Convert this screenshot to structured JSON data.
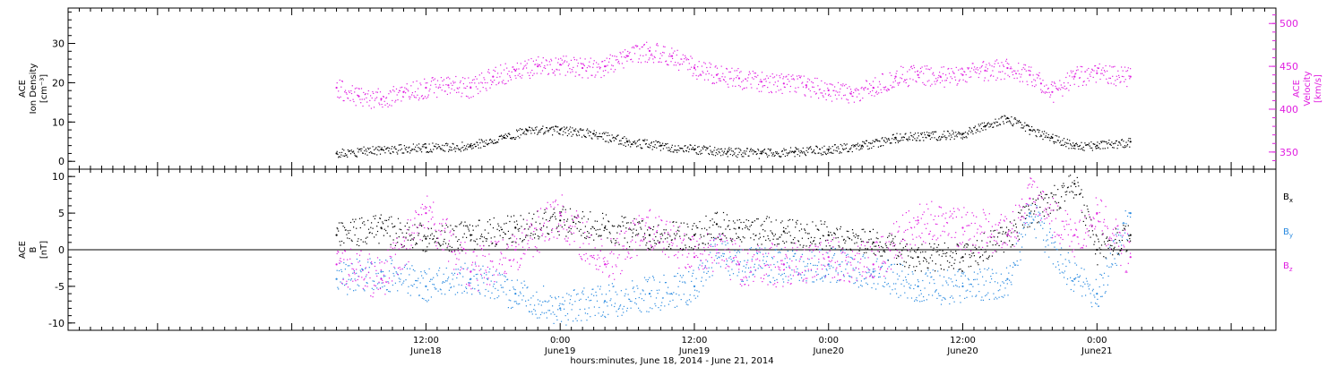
{
  "chart_data": [
    {
      "type": "scatter",
      "panel": "top",
      "xaxis_title": "hours:minutes, June 18, 2014 - June 21, 2014",
      "x_range": [
        "2014-06-17T04:00",
        "2014-06-21T16:00"
      ],
      "x_ticks": [
        {
          "x": "2014-06-18T12:00",
          "time": "12:00",
          "date": "June18"
        },
        {
          "x": "2014-06-19T00:00",
          "time": "0:00",
          "date": "June19"
        },
        {
          "x": "2014-06-19T12:00",
          "time": "12:00",
          "date": "June19"
        },
        {
          "x": "2014-06-20T00:00",
          "time": "0:00",
          "date": "June20"
        },
        {
          "x": "2014-06-20T12:00",
          "time": "12:00",
          "date": "June20"
        },
        {
          "x": "2014-06-21T00:00",
          "time": "0:00",
          "date": "June21"
        }
      ],
      "left_axis": {
        "label_lines": [
          "ACE",
          "Ion Density",
          "[cm⁻³]"
        ],
        "range": [
          -2,
          39
        ],
        "ticks": [
          0,
          10,
          20,
          30
        ],
        "color": "#000000"
      },
      "right_axis": {
        "label_lines": [
          "ACE",
          "Velocity",
          "[km/s]"
        ],
        "range": [
          330,
          518
        ],
        "ticks": [
          350,
          400,
          450,
          500
        ],
        "color": "#e01ee0"
      },
      "series": [
        {
          "name": "Ion Density",
          "axis": "left",
          "color": "#000000",
          "x": [
            "2014-06-18T04:00",
            "2014-06-18T08:00",
            "2014-06-18T12:00",
            "2014-06-18T16:00",
            "2014-06-18T19:00",
            "2014-06-18T21:00",
            "2014-06-19T00:00",
            "2014-06-19T03:00",
            "2014-06-19T06:00",
            "2014-06-19T09:00",
            "2014-06-19T12:00",
            "2014-06-19T15:00",
            "2014-06-19T18:00",
            "2014-06-19T21:00",
            "2014-06-20T00:00",
            "2014-06-20T03:00",
            "2014-06-20T06:00",
            "2014-06-20T09:00",
            "2014-06-20T12:00",
            "2014-06-20T14:00",
            "2014-06-20T16:00",
            "2014-06-20T18:00",
            "2014-06-20T20:00",
            "2014-06-20T22:00",
            "2014-06-21T00:00",
            "2014-06-21T03:00"
          ],
          "y": [
            2,
            3,
            3.5,
            4,
            6,
            8,
            8,
            7,
            5,
            4,
            3,
            2.5,
            2,
            2.5,
            3,
            4,
            6,
            6.5,
            7,
            9,
            11,
            8,
            6,
            4,
            4,
            5
          ]
        },
        {
          "name": "Velocity",
          "axis": "right",
          "color": "#e01ee0",
          "x": [
            "2014-06-18T04:00",
            "2014-06-18T06:00",
            "2014-06-18T08:00",
            "2014-06-18T10:00",
            "2014-06-18T12:00",
            "2014-06-18T14:00",
            "2014-06-18T16:00",
            "2014-06-18T18:00",
            "2014-06-18T20:00",
            "2014-06-18T22:00",
            "2014-06-19T00:00",
            "2014-06-19T02:00",
            "2014-06-19T04:00",
            "2014-06-19T06:00",
            "2014-06-19T08:00",
            "2014-06-19T10:00",
            "2014-06-19T12:00",
            "2014-06-19T14:00",
            "2014-06-19T16:00",
            "2014-06-19T18:00",
            "2014-06-19T20:00",
            "2014-06-19T22:00",
            "2014-06-20T00:00",
            "2014-06-20T02:00",
            "2014-06-20T04:00",
            "2014-06-20T06:00",
            "2014-06-20T08:00",
            "2014-06-20T10:00",
            "2014-06-20T12:00",
            "2014-06-20T14:00",
            "2014-06-20T16:00",
            "2014-06-20T18:00",
            "2014-06-20T19:00",
            "2014-06-20T20:00",
            "2014-06-20T22:00",
            "2014-06-21T00:00",
            "2014-06-21T03:00"
          ],
          "y": [
            425,
            415,
            412,
            420,
            425,
            428,
            425,
            438,
            445,
            450,
            452,
            448,
            450,
            462,
            468,
            462,
            448,
            440,
            436,
            432,
            430,
            428,
            422,
            418,
            425,
            438,
            440,
            438,
            440,
            445,
            448,
            440,
            430,
            420,
            438,
            442,
            438
          ]
        }
      ]
    },
    {
      "type": "scatter",
      "panel": "bottom",
      "x_range": [
        "2014-06-17T04:00",
        "2014-06-21T16:00"
      ],
      "left_axis": {
        "label_lines": [
          "ACE",
          "B",
          "[nT]"
        ],
        "range": [
          -11,
          11
        ],
        "ticks": [
          -10,
          -5,
          0,
          5,
          10
        ]
      },
      "zero_line": 0,
      "series": [
        {
          "name": "Bx",
          "color": "#000000",
          "x": [
            "2014-06-18T04:00",
            "2014-06-18T08:00",
            "2014-06-18T12:00",
            "2014-06-18T16:00",
            "2014-06-18T20:00",
            "2014-06-19T00:00",
            "2014-06-19T04:00",
            "2014-06-19T08:00",
            "2014-06-19T12:00",
            "2014-06-19T14:00",
            "2014-06-19T16:00",
            "2014-06-19T20:00",
            "2014-06-20T00:00",
            "2014-06-20T04:00",
            "2014-06-20T08:00",
            "2014-06-20T12:00",
            "2014-06-20T16:00",
            "2014-06-20T18:00",
            "2014-06-20T22:00",
            "2014-06-21T00:00",
            "2014-06-21T03:00"
          ],
          "y": [
            2,
            3,
            1.5,
            2,
            3,
            4,
            3,
            2,
            2,
            3.5,
            3,
            2.5,
            2,
            1,
            -1,
            -1,
            2,
            5,
            9,
            0,
            2
          ]
        },
        {
          "name": "By",
          "color": "#2a8ae0",
          "x": [
            "2014-06-18T04:00",
            "2014-06-18T08:00",
            "2014-06-18T12:00",
            "2014-06-18T16:00",
            "2014-06-18T20:00",
            "2014-06-19T00:00",
            "2014-06-19T04:00",
            "2014-06-19T08:00",
            "2014-06-19T12:00",
            "2014-06-19T14:00",
            "2014-06-19T16:00",
            "2014-06-19T20:00",
            "2014-06-20T00:00",
            "2014-06-20T04:00",
            "2014-06-20T08:00",
            "2014-06-20T12:00",
            "2014-06-20T16:00",
            "2014-06-20T18:00",
            "2014-06-20T22:00",
            "2014-06-21T00:00",
            "2014-06-21T03:00"
          ],
          "y": [
            -4,
            -3,
            -5,
            -4,
            -6,
            -8,
            -7,
            -6,
            -5,
            0,
            -2,
            -2,
            -2,
            -3,
            -5,
            -5,
            -4,
            5,
            -4,
            -6,
            5
          ]
        },
        {
          "name": "Bz",
          "color": "#e01ee0",
          "x": [
            "2014-06-18T04:00",
            "2014-06-18T08:00",
            "2014-06-18T12:00",
            "2014-06-18T16:00",
            "2014-06-18T20:00",
            "2014-06-19T00:00",
            "2014-06-19T04:00",
            "2014-06-19T08:00",
            "2014-06-19T12:00",
            "2014-06-19T14:00",
            "2014-06-19T16:00",
            "2014-06-19T20:00",
            "2014-06-20T00:00",
            "2014-06-20T04:00",
            "2014-06-20T08:00",
            "2014-06-20T12:00",
            "2014-06-20T16:00",
            "2014-06-20T18:00",
            "2014-06-20T22:00",
            "2014-06-21T00:00",
            "2014-06-21T03:00"
          ],
          "y": [
            -2,
            -4,
            5,
            -3,
            0,
            5,
            -2,
            3,
            -1,
            0,
            -2,
            -2,
            -1,
            -2,
            4,
            3,
            2,
            7,
            2,
            5,
            -1
          ]
        }
      ],
      "legend": {
        "placement": "right",
        "entries": [
          {
            "base": "B",
            "sub": "x",
            "color": "#000000"
          },
          {
            "base": "B",
            "sub": "y",
            "color": "#2a8ae0"
          },
          {
            "base": "B",
            "sub": "z",
            "color": "#e01ee0"
          }
        ]
      }
    }
  ]
}
